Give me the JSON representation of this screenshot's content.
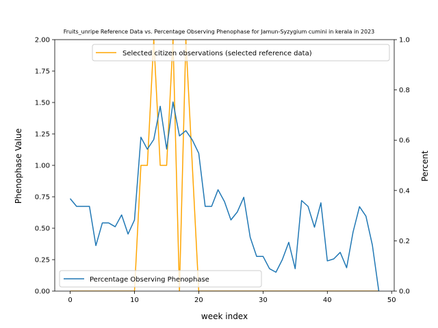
{
  "chart_data": {
    "type": "line",
    "title": "Fruits_unripe Reference Data vs. Percentage Observing Phenophase for Jamun-Syzygium cumini in kerala in 2023",
    "xlabel": "week index",
    "ylabel": "Phenophase Value",
    "y2label": "Percent",
    "xlim": [
      -2.4,
      50.4
    ],
    "ylim": [
      0,
      2.0
    ],
    "y2lim": [
      0,
      1.0
    ],
    "xticks": [
      0,
      10,
      20,
      30,
      40,
      50
    ],
    "yticks": [
      "0.00",
      "0.25",
      "0.50",
      "0.75",
      "1.00",
      "1.25",
      "1.50",
      "1.75",
      "2.00"
    ],
    "y2ticks": [
      "0.0",
      "0.2",
      "0.4",
      "0.6",
      "0.8",
      "1.0"
    ],
    "series": [
      {
        "name": "Selected citizen observations (selected reference data)",
        "axis": "left",
        "color": "#ffa500",
        "legend_position": "top-right",
        "x": [
          0,
          1,
          2,
          3,
          4,
          5,
          6,
          7,
          8,
          9,
          10,
          11,
          12,
          13,
          14,
          15,
          16,
          17,
          18,
          19,
          20,
          21,
          22,
          23,
          24,
          25,
          26,
          27,
          28,
          29,
          30,
          31,
          32,
          33,
          34,
          35,
          36,
          37,
          38,
          39,
          40,
          41,
          42,
          43,
          44,
          45,
          46,
          47,
          48
        ],
        "values": [
          0,
          0,
          0,
          0,
          0,
          0,
          0,
          0,
          0,
          0,
          0,
          1,
          1,
          2,
          1,
          1,
          2,
          0,
          2,
          1,
          0,
          0,
          0,
          0,
          0,
          0,
          0,
          0,
          0,
          0,
          0,
          0,
          0,
          0,
          0,
          0,
          0,
          0,
          0,
          0,
          0,
          0,
          0,
          0,
          0,
          0,
          0,
          0,
          0
        ]
      },
      {
        "name": "Percentage Observing Phenophase",
        "axis": "right",
        "color": "#1f77b4",
        "legend_position": "bottom-left",
        "x": [
          0,
          1,
          2,
          3,
          4,
          5,
          6,
          7,
          8,
          9,
          10,
          11,
          12,
          13,
          14,
          15,
          16,
          17,
          18,
          19,
          20,
          21,
          22,
          23,
          24,
          25,
          26,
          27,
          28,
          29,
          30,
          31,
          32,
          33,
          34,
          35,
          36,
          37,
          38,
          39,
          40,
          41,
          42,
          43,
          44,
          45,
          46,
          47,
          48
        ],
        "values": [
          0.368,
          0.337,
          0.337,
          0.337,
          0.181,
          0.271,
          0.271,
          0.256,
          0.303,
          0.227,
          0.283,
          0.612,
          0.564,
          0.603,
          0.735,
          0.565,
          0.752,
          0.617,
          0.638,
          0.601,
          0.548,
          0.337,
          0.337,
          0.403,
          0.356,
          0.283,
          0.315,
          0.373,
          0.214,
          0.138,
          0.138,
          0.089,
          0.075,
          0.125,
          0.194,
          0.089,
          0.36,
          0.337,
          0.254,
          0.351,
          0.12,
          0.128,
          0.154,
          0.093,
          0.235,
          0.336,
          0.298,
          0.183,
          0.0
        ]
      }
    ]
  }
}
